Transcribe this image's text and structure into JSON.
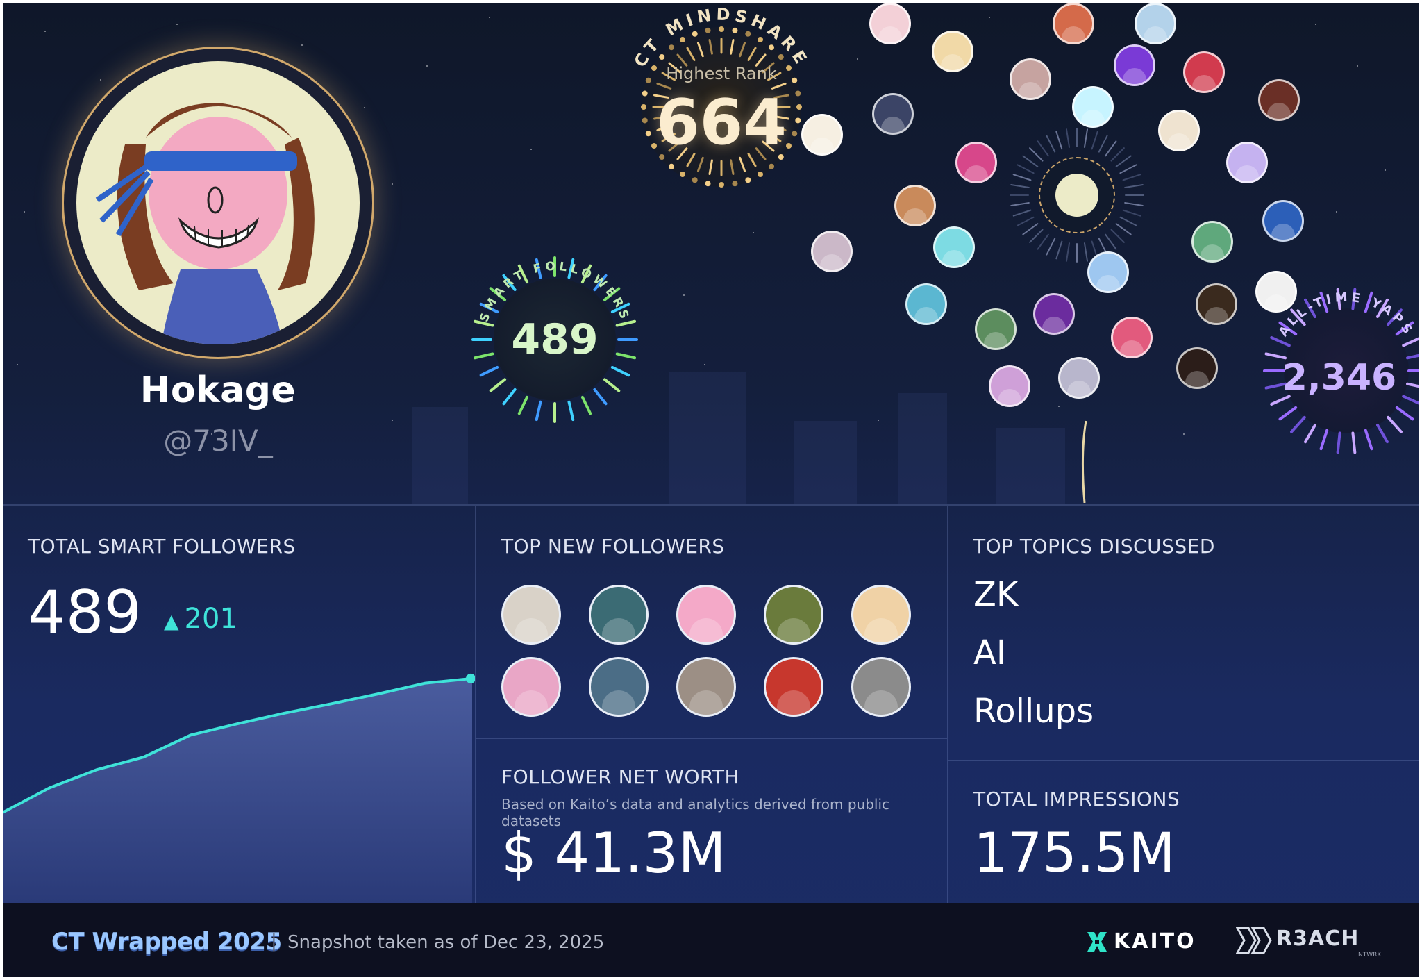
{
  "profile": {
    "name": "Hokage",
    "handle": "@73IV_"
  },
  "bursts": {
    "mindshare": {
      "arc_label": "CT MINDSHARE",
      "caption": "Highest Rank",
      "value": "664"
    },
    "smart_followers": {
      "arc_label": "SMART FOLLOWERS",
      "value": "489"
    },
    "yaps": {
      "arc_label": "ALL-TIME YAPS",
      "value": "2,346"
    }
  },
  "total_smart_followers": {
    "title": "TOTAL SMART FOLLOWERS",
    "value": "489",
    "delta": "201",
    "chart_data": {
      "type": "area",
      "x": [
        0,
        1,
        2,
        3,
        4,
        5,
        6,
        7,
        8,
        9,
        10
      ],
      "values": [
        288,
        325,
        352,
        371,
        404,
        421,
        437,
        451,
        466,
        482,
        489
      ]
    }
  },
  "top_new_followers": {
    "title": "TOP NEW FOLLOWERS",
    "avatars": [
      "#d9d2c8",
      "#3b6b74",
      "#f4a9c8",
      "#6a7b3c",
      "#f0d2a6",
      "#e9a6c6",
      "#4b6d86",
      "#9c8f85",
      "#c7372d",
      "#8b8b8b"
    ]
  },
  "follower_net_worth": {
    "title": "FOLLOWER NET WORTH",
    "note": "Based on Kaito’s data and analytics derived from public datasets",
    "value": "$ 41.3M"
  },
  "top_topics": {
    "title": "TOP TOPICS DISCUSSED",
    "items": [
      "ZK",
      "AI",
      "Rollups"
    ]
  },
  "total_impressions": {
    "title": "TOTAL IMPRESSIONS",
    "value": "175.5M"
  },
  "footer": {
    "title": "CT Wrapped 2025",
    "separator": "|",
    "snapshot": "Snapshot taken as of Dec 23, 2025",
    "kaito": "KAITO",
    "reach": "R3ACH",
    "reach_sub": "NTWRK"
  },
  "colors": {
    "accent_teal": "#3fe3d9",
    "gold_ring": "#c9a36a",
    "yaps_purple": "#c9b2ff",
    "smart_green": "#d8f5c9"
  },
  "icons": {
    "delta": "triangle-up-icon",
    "kaito_logo": "kaito-x-icon",
    "reach_logo": "r3ach-arrows-icon"
  }
}
